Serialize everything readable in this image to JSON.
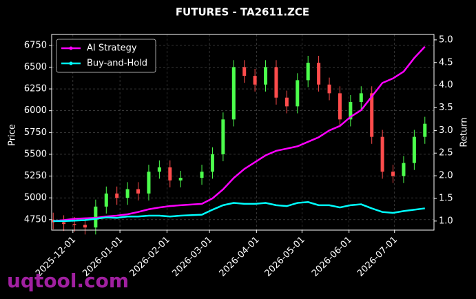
{
  "chart_data": {
    "type": "candlestick",
    "title": "FUTURES - TA2611.ZCE",
    "y_label": "Price",
    "y2_label": "Return",
    "watermark": "uqtool.com",
    "x": [
      "2025-11-18",
      "2025-11-25",
      "2025-12-02",
      "2025-12-09",
      "2025-12-16",
      "2025-12-23",
      "2025-12-30",
      "2026-01-06",
      "2026-01-13",
      "2026-01-20",
      "2026-01-27",
      "2026-02-03",
      "2026-02-10",
      "2026-02-24",
      "2026-03-03",
      "2026-03-10",
      "2026-03-17",
      "2026-03-24",
      "2026-03-31",
      "2026-04-07",
      "2026-04-14",
      "2026-04-21",
      "2026-04-28",
      "2026-05-05",
      "2026-05-12",
      "2026-05-19",
      "2026-05-26",
      "2026-06-02",
      "2026-06-09",
      "2026-06-16",
      "2026-06-23",
      "2026-06-30",
      "2026-07-07",
      "2026-07-14",
      "2026-07-21"
    ],
    "open": [
      4750,
      4720,
      4700,
      4690,
      4660,
      4900,
      5050,
      5000,
      5100,
      5050,
      5300,
      5350,
      5200,
      5230,
      5300,
      5500,
      5900,
      6500,
      6400,
      6300,
      6500,
      6150,
      6050,
      6350,
      6550,
      6300,
      6200,
      5900,
      6100,
      6200,
      5700,
      5300,
      5250,
      5400,
      5700
    ],
    "high": [
      4830,
      4800,
      4780,
      4770,
      4980,
      5130,
      5130,
      5180,
      5180,
      5380,
      5430,
      5430,
      5310,
      5380,
      5580,
      5980,
      6580,
      6580,
      6480,
      6580,
      6580,
      6230,
      6430,
      6630,
      6630,
      6380,
      6280,
      6180,
      6280,
      6280,
      5780,
      5380,
      5480,
      5780,
      5930
    ],
    "low": [
      4640,
      4620,
      4610,
      4580,
      4580,
      4820,
      4920,
      4920,
      4970,
      4970,
      5220,
      5120,
      5120,
      5150,
      5220,
      5420,
      5820,
      6320,
      6220,
      6220,
      6070,
      5970,
      5970,
      6270,
      6220,
      6120,
      5820,
      5820,
      6020,
      5620,
      5220,
      5170,
      5170,
      5320,
      5620
    ],
    "close": [
      4720,
      4700,
      4690,
      4660,
      4900,
      5050,
      5000,
      5100,
      5050,
      5300,
      5350,
      5200,
      5230,
      5300,
      5500,
      5900,
      6500,
      6400,
      6300,
      6500,
      6150,
      6050,
      6350,
      6550,
      6300,
      6200,
      5900,
      6100,
      6200,
      5700,
      5300,
      5250,
      5400,
      5700,
      5850
    ],
    "up_color": "#4cff4c",
    "down_color": "#ff4c4c",
    "series": [
      {
        "name": "AI Strategy",
        "color": "#ff00ff",
        "axis": "y2",
        "values": [
          1.0,
          1.02,
          1.05,
          1.06,
          1.07,
          1.1,
          1.12,
          1.15,
          1.2,
          1.26,
          1.3,
          1.33,
          1.35,
          1.38,
          1.5,
          1.7,
          1.95,
          2.15,
          2.3,
          2.45,
          2.55,
          2.6,
          2.65,
          2.75,
          2.85,
          3.0,
          3.1,
          3.3,
          3.45,
          3.75,
          4.05,
          4.15,
          4.3,
          4.6,
          4.85
        ]
      },
      {
        "name": "Buy-and-Hold",
        "color": "#00ffff",
        "axis": "y2",
        "values": [
          1.0,
          1.0,
          1.01,
          1.02,
          1.05,
          1.08,
          1.07,
          1.1,
          1.1,
          1.12,
          1.12,
          1.1,
          1.12,
          1.14,
          1.25,
          1.35,
          1.4,
          1.38,
          1.38,
          1.4,
          1.35,
          1.33,
          1.4,
          1.42,
          1.35,
          1.35,
          1.3,
          1.35,
          1.37,
          1.28,
          1.2,
          1.18,
          1.22,
          1.25,
          1.28
        ]
      }
    ],
    "xlim": [
      "2025-11-17",
      "2026-07-27"
    ],
    "xticks": [
      "2025-12-01",
      "2026-01-01",
      "2026-02-01",
      "2026-03-01",
      "2026-04-01",
      "2026-05-01",
      "2026-06-01",
      "2026-07-01"
    ],
    "ylim": [
      4630,
      6875
    ],
    "yticks": [
      4750,
      5000,
      5250,
      5500,
      5750,
      6000,
      6250,
      6500,
      6750
    ],
    "y2lim": [
      0.8,
      5.12
    ],
    "y2ticks": [
      {
        "value": 1,
        "label": "1.0"
      },
      1.5,
      {
        "value": 2,
        "label": "2.0"
      },
      2.5,
      {
        "value": 3,
        "label": "3.0"
      },
      3.5,
      {
        "value": 4,
        "label": "4.0"
      },
      4.5,
      {
        "value": 5,
        "label": "5.0"
      }
    ],
    "grid": true,
    "legend": "upper left"
  }
}
